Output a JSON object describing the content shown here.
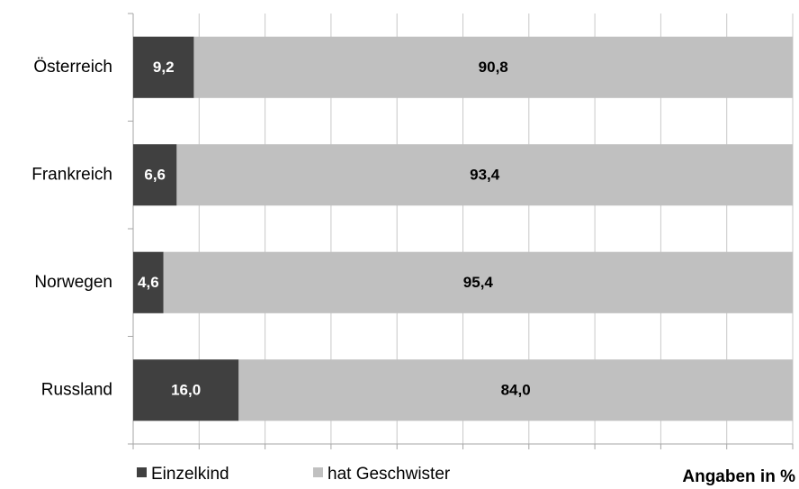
{
  "chart_data": {
    "type": "stacked_barh",
    "categories": [
      "Österreich",
      "Frankreich",
      "Norwegen",
      "Russland"
    ],
    "series": [
      {
        "name": "Einzelkind",
        "color": "#404040",
        "label_color": "#ffffff",
        "values": [
          9.2,
          6.6,
          4.6,
          16.0
        ],
        "value_labels": [
          "9,2",
          "6,6",
          "4,6",
          "16,0"
        ]
      },
      {
        "name": "hat Geschwister",
        "color": "#c0c0c0",
        "label_color": "#000000",
        "values": [
          90.8,
          93.4,
          95.4,
          84.0
        ],
        "value_labels": [
          "90,8",
          "93,4",
          "95,4",
          "84,0"
        ]
      }
    ],
    "xlim": [
      0,
      100
    ],
    "xticks": [
      0,
      10,
      20,
      30,
      40,
      50,
      60,
      70,
      80,
      90,
      100
    ],
    "grid": true,
    "annotation": "Angaben in %",
    "legend": "bottom"
  }
}
